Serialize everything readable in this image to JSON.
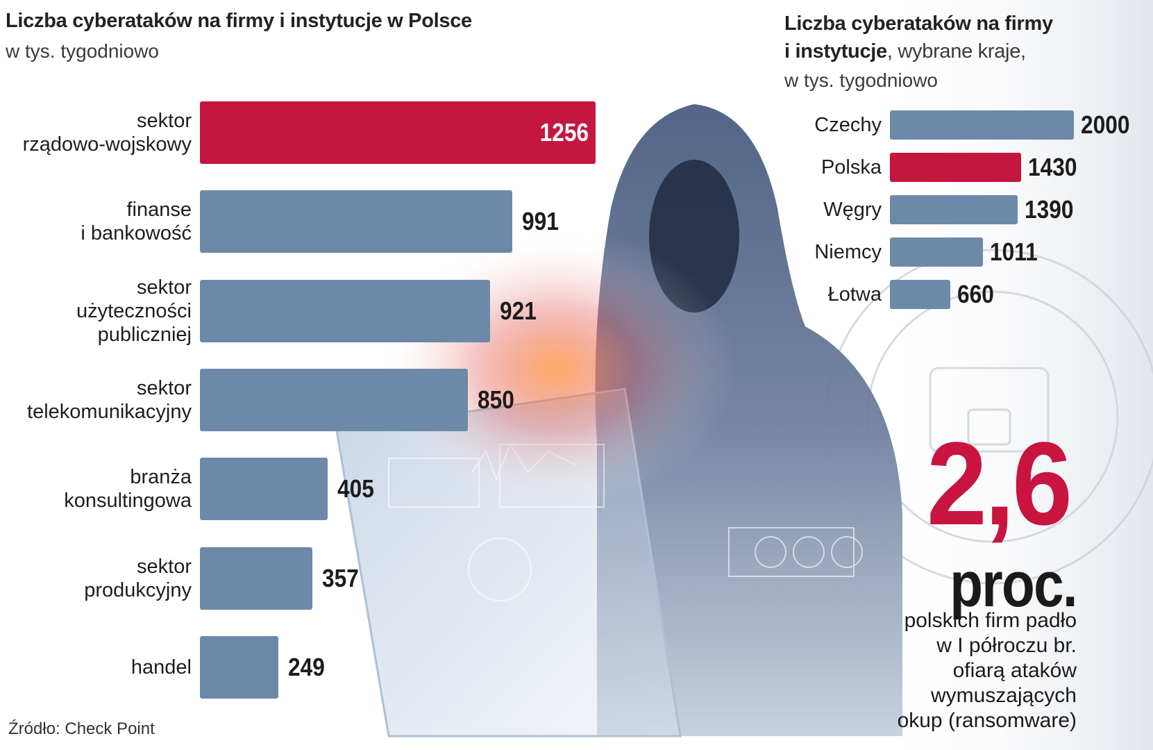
{
  "chart_data": [
    {
      "type": "bar",
      "title": "Liczba cyberataków na firmy i instytucje w Polsce",
      "subtitle": "w tys. tygodniowo",
      "categories": [
        "sektor\nrządowo-wojskowy",
        "finanse\ni bankowość",
        "sektor\nużyteczności\npubliczniej",
        "sektor\ntelekomunikacyjny",
        "branża\nkonsultingowa",
        "sektor\nprodukcyjny",
        "handel"
      ],
      "values": [
        1256,
        991,
        921,
        850,
        405,
        357,
        249
      ],
      "labels": [
        "1256",
        "991",
        "921",
        "850",
        "405",
        "357",
        "249"
      ],
      "colors": [
        "#c4173f",
        "#6c89a8",
        "#6c89a8",
        "#6c89a8",
        "#6c89a8",
        "#6c89a8",
        "#6c89a8"
      ],
      "source": "Źródło: Check Point"
    },
    {
      "type": "bar",
      "title_bold_1": "Liczba cyberataków na firmy",
      "title_bold_2": "i instytucje",
      "title_rest": ", wybrane kraje,",
      "subtitle": "w tys. tygodniowo",
      "categories": [
        "Czechy",
        "Polska",
        "Węgry",
        "Niemcy",
        "Łotwa"
      ],
      "values": [
        2000,
        1430,
        1390,
        1011,
        660
      ],
      "labels": [
        "2000",
        "1430",
        "1390",
        "1011",
        "660"
      ],
      "colors": [
        "#6c89a8",
        "#c4173f",
        "#6c89a8",
        "#6c89a8",
        "#6c89a8"
      ]
    }
  ],
  "highlight": {
    "number": "2,6",
    "unit": "proc.",
    "description": "polskich firm padło\nw I półroczu br.\nofiarą ataków\nwymuszających\nokup (ransomware)"
  },
  "colors": {
    "accent_red": "#c4173f",
    "bar_blue": "#6c89a8",
    "text_dark": "#1a1a1a"
  }
}
